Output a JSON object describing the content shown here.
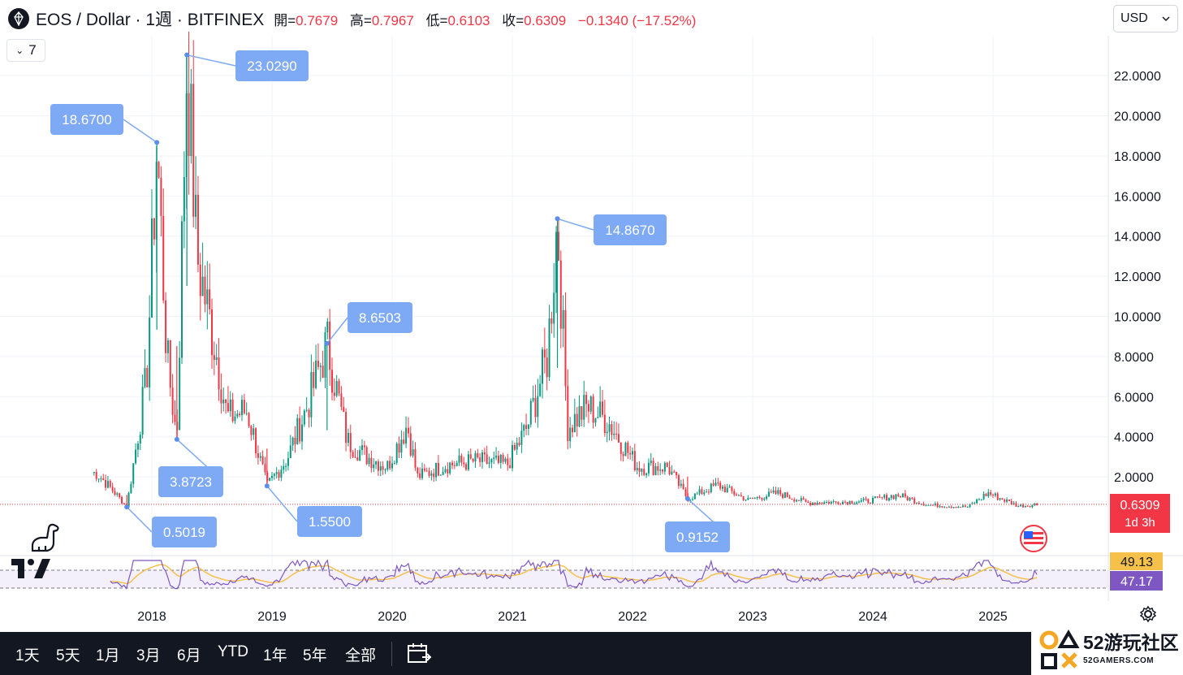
{
  "header": {
    "symbol": "EOS / Dollar · 1週 · BITFINEX",
    "open_label": "開=",
    "open_value": "0.7679",
    "high_label": "高=",
    "high_value": "0.7967",
    "low_label": "低=",
    "low_value": "0.6103",
    "close_label": "收=",
    "close_value": "0.6309",
    "change": "−0.1340 (−17.52%)",
    "indicators_count": "7",
    "currency": "USD"
  },
  "colors": {
    "up": "#089981",
    "down": "#f23645",
    "label_bg": "#7ea9f5",
    "rsi": "#7e57c2",
    "rsi_ma": "#f5c14b",
    "bottom_bar": "#131722"
  },
  "chart_data": [
    {
      "type": "candlestick",
      "x_range": [
        "2017-06",
        "2025-06"
      ],
      "y_axis_ticks": [
        "2.0000",
        "4.0000",
        "6.0000",
        "8.0000",
        "10.0000",
        "12.0000",
        "14.0000",
        "16.0000",
        "18.0000",
        "20.0000",
        "22.0000"
      ],
      "x_axis_ticks": [
        "2018",
        "2019",
        "2020",
        "2021",
        "2022",
        "2023",
        "2024",
        "2025"
      ],
      "ylim": [
        0,
        24
      ],
      "grid": true,
      "series": [
        {
          "points": [
            {
              "x": "2017-07",
              "y": 2.2
            },
            {
              "x": "2017-09",
              "y": 1.1
            },
            {
              "x": "2017-10",
              "y": 0.5
            },
            {
              "x": "2017-12",
              "y": 7.0
            },
            {
              "x": "2018-01",
              "y": 18.67
            },
            {
              "x": "2018-02",
              "y": 8.0
            },
            {
              "x": "2018-03",
              "y": 3.87
            },
            {
              "x": "2018-04",
              "y": 23.03
            },
            {
              "x": "2018-05",
              "y": 13.0
            },
            {
              "x": "2018-07",
              "y": 8.0
            },
            {
              "x": "2018-08",
              "y": 5.0
            },
            {
              "x": "2018-10",
              "y": 5.3
            },
            {
              "x": "2018-12",
              "y": 1.55
            },
            {
              "x": "2019-02",
              "y": 2.9
            },
            {
              "x": "2019-04",
              "y": 5.5
            },
            {
              "x": "2019-06",
              "y": 8.65
            },
            {
              "x": "2019-08",
              "y": 3.8
            },
            {
              "x": "2019-10",
              "y": 3.0
            },
            {
              "x": "2019-12",
              "y": 2.5
            },
            {
              "x": "2020-02",
              "y": 4.6
            },
            {
              "x": "2020-03",
              "y": 2.0
            },
            {
              "x": "2020-06",
              "y": 2.6
            },
            {
              "x": "2020-09",
              "y": 2.8
            },
            {
              "x": "2020-12",
              "y": 2.6
            },
            {
              "x": "2021-02",
              "y": 4.5
            },
            {
              "x": "2021-04",
              "y": 8.0
            },
            {
              "x": "2021-05",
              "y": 14.867
            },
            {
              "x": "2021-06",
              "y": 4.5
            },
            {
              "x": "2021-08",
              "y": 5.5
            },
            {
              "x": "2021-10",
              "y": 4.8
            },
            {
              "x": "2022-01",
              "y": 2.5
            },
            {
              "x": "2022-04",
              "y": 2.5
            },
            {
              "x": "2022-06",
              "y": 0.9152
            },
            {
              "x": "2022-09",
              "y": 1.6
            },
            {
              "x": "2022-12",
              "y": 0.85
            },
            {
              "x": "2023-03",
              "y": 1.2
            },
            {
              "x": "2023-06",
              "y": 0.7
            },
            {
              "x": "2023-12",
              "y": 0.8
            },
            {
              "x": "2024-03",
              "y": 1.1
            },
            {
              "x": "2024-06",
              "y": 0.6
            },
            {
              "x": "2024-10",
              "y": 0.5
            },
            {
              "x": "2024-12",
              "y": 1.2
            },
            {
              "x": "2025-03",
              "y": 0.55
            },
            {
              "x": "2025-05",
              "y": 0.6309
            }
          ]
        }
      ],
      "annotations": [
        {
          "label": "23.0290",
          "x": "2018-04",
          "y": 23.029
        },
        {
          "label": "18.6700",
          "x": "2018-01",
          "y": 18.67
        },
        {
          "label": "14.8670",
          "x": "2021-05",
          "y": 14.867
        },
        {
          "label": "8.6503",
          "x": "2019-06",
          "y": 8.6503
        },
        {
          "label": "3.8723",
          "x": "2018-03",
          "y": 3.8723
        },
        {
          "label": "1.5500",
          "x": "2018-12",
          "y": 1.55
        },
        {
          "label": "0.5019",
          "x": "2017-10",
          "y": 0.5019
        },
        {
          "label": "0.9152",
          "x": "2022-06",
          "y": 0.9152
        }
      ],
      "last_price": {
        "value": "0.6309",
        "countdown": "1d 3h"
      }
    },
    {
      "type": "line",
      "series": [
        {
          "values": []
        },
        {
          "values": []
        }
      ],
      "last_values": {
        "rsi_ma": "49.13",
        "rsi": "47.17"
      }
    }
  ],
  "bottom_bar": {
    "ranges": [
      "1天",
      "5天",
      "1月",
      "3月",
      "6月",
      "YTD",
      "1年",
      "5年",
      "全部"
    ]
  },
  "watermark": {
    "title": "52游玩社区",
    "subtitle": "52GAMERS.COM"
  }
}
